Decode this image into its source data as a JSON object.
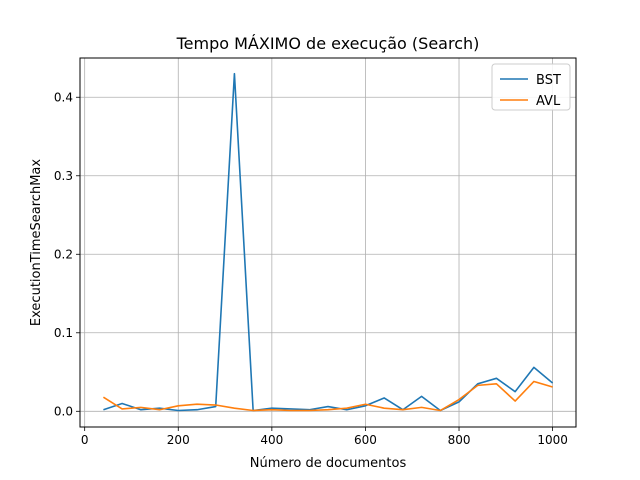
{
  "chart_data": {
    "type": "line",
    "title": "Tempo MÁXIMO de execução (Search)",
    "xlabel": "Número de documentos",
    "ylabel": "ExecutionTimeSearchMax",
    "xlim": [
      -10,
      1050
    ],
    "ylim": [
      -0.02,
      0.45
    ],
    "xticks": [
      0,
      200,
      400,
      600,
      800,
      1000
    ],
    "xtick_labels": [
      "0",
      "200",
      "400",
      "600",
      "800",
      "1000"
    ],
    "yticks": [
      0.0,
      0.1,
      0.2,
      0.3,
      0.4
    ],
    "ytick_labels": [
      "0.0",
      "0.1",
      "0.2",
      "0.3",
      "0.4"
    ],
    "grid": true,
    "legend_position": "top-right",
    "x": [
      40,
      80,
      120,
      160,
      200,
      240,
      280,
      320,
      360,
      400,
      440,
      480,
      520,
      560,
      600,
      640,
      680,
      720,
      760,
      800,
      840,
      880,
      920,
      960,
      1000
    ],
    "series": [
      {
        "name": "BST",
        "color": "#1f77b4",
        "values": [
          0.002,
          0.01,
          0.002,
          0.004,
          0.001,
          0.002,
          0.006,
          0.43,
          0.001,
          0.004,
          0.003,
          0.002,
          0.006,
          0.002,
          0.007,
          0.017,
          0.002,
          0.019,
          0.001,
          0.012,
          0.035,
          0.042,
          0.025,
          0.056,
          0.036
        ]
      },
      {
        "name": "AVL",
        "color": "#ff7f0e",
        "values": [
          0.018,
          0.003,
          0.005,
          0.002,
          0.007,
          0.009,
          0.008,
          0.004,
          0.001,
          0.002,
          0.001,
          0.001,
          0.002,
          0.004,
          0.009,
          0.004,
          0.002,
          0.005,
          0.001,
          0.015,
          0.033,
          0.035,
          0.013,
          0.038,
          0.031
        ]
      }
    ]
  }
}
